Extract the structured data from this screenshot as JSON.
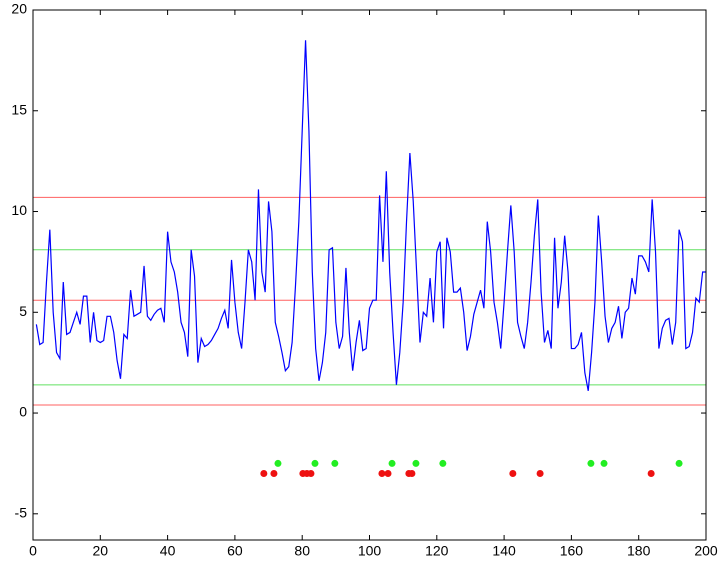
{
  "chart_data": {
    "type": "line",
    "xlim": [
      0,
      200
    ],
    "ylim": [
      -6.3,
      20
    ],
    "xticks": [
      0,
      20,
      40,
      60,
      80,
      100,
      120,
      140,
      160,
      180,
      200
    ],
    "yticks": [
      -5,
      0,
      5,
      10,
      15,
      20
    ],
    "series": [
      {
        "color": "#0000ff",
        "x": [
          1,
          2,
          3,
          4,
          5,
          6,
          7,
          8,
          9,
          10,
          11,
          12,
          13,
          14,
          15,
          16,
          17,
          18,
          19,
          20,
          21,
          22,
          23,
          24,
          25,
          26,
          27,
          28,
          29,
          30,
          31,
          32,
          33,
          34,
          35,
          36,
          37,
          38,
          39,
          40,
          41,
          42,
          43,
          44,
          45,
          46,
          47,
          48,
          49,
          50,
          51,
          52,
          53,
          54,
          55,
          56,
          57,
          58,
          59,
          60,
          61,
          62,
          63,
          64,
          65,
          66,
          67,
          68,
          69,
          70,
          71,
          72,
          73,
          74,
          75,
          76,
          77,
          78,
          79,
          80,
          81,
          82,
          83,
          84,
          85,
          86,
          87,
          88,
          89,
          90,
          91,
          92,
          93,
          94,
          95,
          96,
          97,
          98,
          99,
          100,
          101,
          102,
          103,
          104,
          105,
          106,
          107,
          108,
          109,
          110,
          111,
          112,
          113,
          114,
          115,
          116,
          117,
          118,
          119,
          120,
          121,
          122,
          123,
          124,
          125,
          126,
          127,
          128,
          129,
          130,
          131,
          132,
          133,
          134,
          135,
          136,
          137,
          138,
          139,
          140,
          141,
          142,
          143,
          144,
          145,
          146,
          147,
          148,
          149,
          150,
          151,
          152,
          153,
          154,
          155,
          156,
          157,
          158,
          159,
          160,
          161,
          162,
          163,
          164,
          165,
          166,
          167,
          168,
          169,
          170,
          171,
          172,
          173,
          174,
          175,
          176,
          177,
          178,
          179,
          180,
          181,
          182,
          183,
          184,
          185,
          186,
          187,
          188,
          189,
          190,
          191,
          192,
          193,
          194,
          195,
          196,
          197,
          198,
          199,
          200
        ],
        "values": [
          4.4,
          3.4,
          3.5,
          6.5,
          9.1,
          5.0,
          3.0,
          2.7,
          6.5,
          3.9,
          4.0,
          4.5,
          5.0,
          4.4,
          5.8,
          5.8,
          3.5,
          5.0,
          3.6,
          3.5,
          3.6,
          4.8,
          4.8,
          4.0,
          2.6,
          1.7,
          3.9,
          3.7,
          6.1,
          4.8,
          4.9,
          5.0,
          7.3,
          4.8,
          4.6,
          4.9,
          5.1,
          5.2,
          4.5,
          9.0,
          7.5,
          7.0,
          6.0,
          4.5,
          4.0,
          2.8,
          8.1,
          6.8,
          2.5,
          3.7,
          3.3,
          3.4,
          3.6,
          3.9,
          4.2,
          4.7,
          5.1,
          4.2,
          7.6,
          5.5,
          4.0,
          3.2,
          5.5,
          8.1,
          7.5,
          5.6,
          11.1,
          7.0,
          6.0,
          10.5,
          9.0,
          4.5,
          3.8,
          3.0,
          2.1,
          2.3,
          3.5,
          6.3,
          9.5,
          14.0,
          18.5,
          14.0,
          7.0,
          3.2,
          1.6,
          2.5,
          4.0,
          8.1,
          8.2,
          4.5,
          3.2,
          3.8,
          7.2,
          4.0,
          2.1,
          3.5,
          4.6,
          3.1,
          3.2,
          5.2,
          5.6,
          5.6,
          10.8,
          7.5,
          12.0,
          7.0,
          4.0,
          1.4,
          3.0,
          5.5,
          9.5,
          12.9,
          10.5,
          7.0,
          3.5,
          5.0,
          4.8,
          6.7,
          4.5,
          8.0,
          8.5,
          4.2,
          8.7,
          8.0,
          6.0,
          6.0,
          6.2,
          5.0,
          3.1,
          3.8,
          4.9,
          5.5,
          6.1,
          5.2,
          9.5,
          8.0,
          5.5,
          4.5,
          3.2,
          5.5,
          8.0,
          10.3,
          8.0,
          4.5,
          3.8,
          3.2,
          4.5,
          6.5,
          8.8,
          10.6,
          6.0,
          3.5,
          4.1,
          3.2,
          8.7,
          5.2,
          6.5,
          8.8,
          7.0,
          3.2,
          3.2,
          3.4,
          4.0,
          2.0,
          1.1,
          3.0,
          5.5,
          9.8,
          7.5,
          4.8,
          3.5,
          4.2,
          4.5,
          5.3,
          3.7,
          5.0,
          5.2,
          6.7,
          5.9,
          7.8,
          7.8,
          7.5,
          7.0,
          10.6,
          8.0,
          3.2,
          4.2,
          4.6,
          4.7,
          3.4,
          4.5,
          9.1,
          8.5,
          3.2,
          3.3,
          4.0,
          5.7,
          5.5,
          7.0,
          7.0
        ]
      }
    ],
    "hlines": [
      {
        "value": 10.7,
        "color": "#ff6060"
      },
      {
        "value": 8.1,
        "color": "#60e060"
      },
      {
        "value": 5.6,
        "color": "#ff6060"
      },
      {
        "value": 1.4,
        "color": "#60e060"
      },
      {
        "value": 0.4,
        "color": "#ff6060"
      }
    ],
    "points": [
      {
        "color": "#22ee22",
        "x": [
          72.8,
          83.8,
          89.7,
          106.7,
          113.8,
          121.8,
          165.8,
          169.7,
          192
        ],
        "values": [
          -2.5,
          -2.5,
          -2.5,
          -2.5,
          -2.5,
          -2.5,
          -2.5,
          -2.5,
          -2.5
        ]
      },
      {
        "color": "#ee1111",
        "x": [
          68.6,
          71.6,
          80.2,
          81.4,
          82.6,
          103.7,
          105.5,
          111.7,
          112.6,
          142.6,
          150.7,
          183.7
        ],
        "values": [
          -3,
          -3,
          -3,
          -3,
          -3,
          -3,
          -3,
          -3,
          -3,
          -3,
          -3,
          -3
        ]
      }
    ]
  }
}
